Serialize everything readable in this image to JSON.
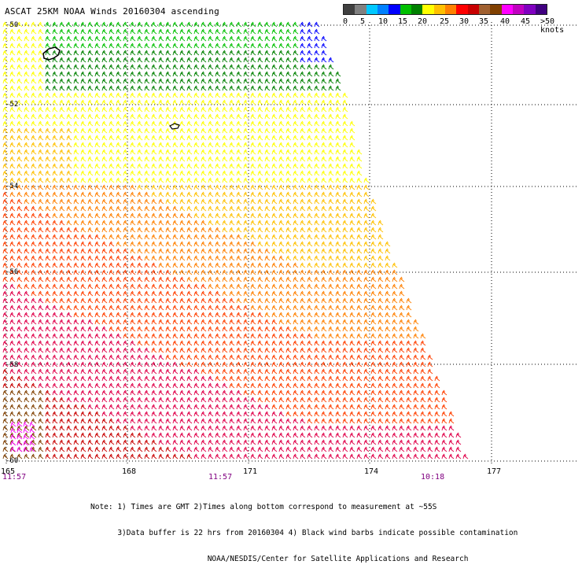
{
  "title": "ASCAT 25KM NOAA Winds 20160304 ascending",
  "colorbar": {
    "colors": [
      "#404040",
      "#808080",
      "#00c8ff",
      "#0080ff",
      "#0000ff",
      "#00c000",
      "#008000",
      "#ffff00",
      "#ffc000",
      "#ff8000",
      "#ff0000",
      "#c80000",
      "#a06030",
      "#804000",
      "#ff00ff",
      "#c000c0",
      "#8000c0",
      "#400080"
    ],
    "labels": [
      {
        "text": "0"
      },
      {
        "text": "5"
      },
      {
        "text": "10"
      },
      {
        "text": "15"
      },
      {
        "text": "20"
      },
      {
        "text": "25"
      },
      {
        "text": "30"
      },
      {
        "text": "35"
      },
      {
        "text": "40"
      },
      {
        "text": "45"
      },
      {
        "text": ">50 knots"
      }
    ]
  },
  "axes": {
    "lat_labels": [
      "-50",
      "-52",
      "-54",
      "-56",
      "-58",
      "-60"
    ],
    "lon_labels": [
      "165",
      "168",
      "171",
      "174",
      "177"
    ],
    "time_labels": [
      "11:57",
      "11:57",
      "10:18"
    ]
  },
  "notes": [
    "Note: 1) Times are GMT 2)Times along bottom correspond to measurement at ~55S",
    "      3)Data buffer is 22 hrs from 20160304 4) Black wind barbs indicate possible contamination",
    "                          NOAA/NESDIS/Center for Satellite Applications and Research"
  ]
}
